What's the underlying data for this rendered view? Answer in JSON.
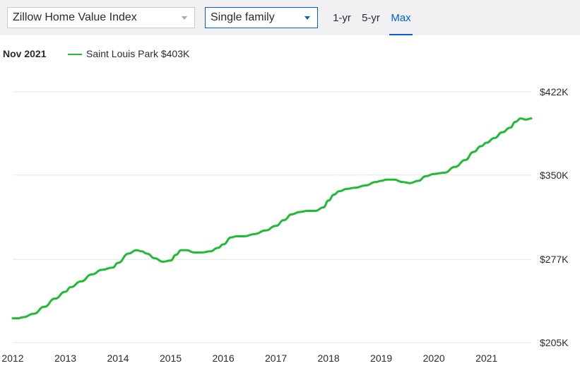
{
  "toolbar": {
    "index_select": {
      "value": "Zillow Home Value Index",
      "icon": "chevron-down-icon"
    },
    "type_select": {
      "value": "Single family",
      "icon": "chevron-down-icon"
    },
    "ranges": [
      {
        "label": "1-yr",
        "active": false
      },
      {
        "label": "5-yr",
        "active": false
      },
      {
        "label": "Max",
        "active": true
      }
    ]
  },
  "legend": {
    "date": "Nov 2021",
    "series_label": "Saint Louis Park $403K"
  },
  "colors": {
    "line": "#1fbb33",
    "accent": "#0061df",
    "grid": "#e6e6e9"
  },
  "chart_data": {
    "type": "line",
    "title": "",
    "xlabel": "",
    "ylabel": "",
    "ylim": [
      205,
      422
    ],
    "y_ticks": [
      "$422K",
      "$350K",
      "$277K",
      "$205K"
    ],
    "y_tick_values": [
      422,
      350,
      277,
      205
    ],
    "x_ticks": [
      "2012",
      "2013",
      "2014",
      "2015",
      "2016",
      "2017",
      "2018",
      "2019",
      "2020",
      "2021"
    ],
    "x_tick_values": [
      2012,
      2013,
      2014,
      2015,
      2016,
      2017,
      2018,
      2019,
      2020,
      2021
    ],
    "grid": true,
    "legend_position": "top-left",
    "series": [
      {
        "name": "Saint Louis Park $403K",
        "x": [
          2012.0,
          2012.1,
          2012.2,
          2012.4,
          2012.6,
          2012.8,
          2013.0,
          2013.1,
          2013.3,
          2013.5,
          2013.7,
          2013.9,
          2014.0,
          2014.2,
          2014.35,
          2014.45,
          2014.55,
          2014.7,
          2014.85,
          2015.0,
          2015.1,
          2015.2,
          2015.3,
          2015.45,
          2015.6,
          2015.75,
          2015.9,
          2016.0,
          2016.15,
          2016.25,
          2016.4,
          2016.6,
          2016.8,
          2017.0,
          2017.15,
          2017.3,
          2017.45,
          2017.6,
          2017.75,
          2017.9,
          2018.0,
          2018.1,
          2018.2,
          2018.35,
          2018.5,
          2018.7,
          2018.9,
          2019.0,
          2019.1,
          2019.25,
          2019.4,
          2019.55,
          2019.7,
          2019.85,
          2020.0,
          2020.2,
          2020.4,
          2020.6,
          2020.75,
          2020.9,
          2021.0,
          2021.15,
          2021.3,
          2021.45,
          2021.55,
          2021.65,
          2021.75,
          2021.85
        ],
        "values": [
          226,
          226,
          227,
          230,
          236,
          243,
          249,
          253,
          258,
          264,
          268,
          270,
          274,
          282,
          285,
          284,
          282,
          278,
          275,
          276,
          281,
          285,
          285,
          283,
          283,
          284,
          287,
          290,
          296,
          297,
          297,
          299,
          302,
          306,
          311,
          316,
          318,
          319,
          319,
          322,
          328,
          333,
          336,
          338,
          339,
          341,
          344,
          345,
          346,
          346,
          344,
          343,
          345,
          349,
          351,
          352,
          357,
          363,
          370,
          375,
          378,
          382,
          387,
          391,
          396,
          399,
          398,
          399
        ]
      }
    ]
  }
}
